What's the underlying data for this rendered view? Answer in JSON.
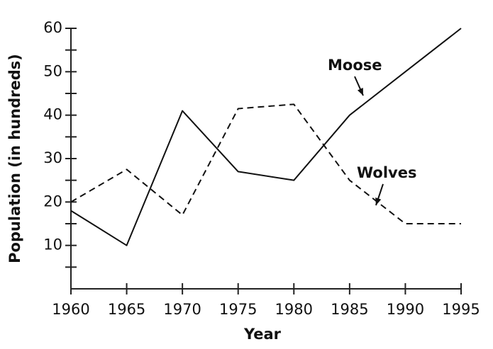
{
  "chart_data": {
    "type": "line",
    "x_label": "Year",
    "y_label": "Population (in hundreds)",
    "x": [
      1960,
      1965,
      1970,
      1975,
      1980,
      1985,
      1990,
      1995
    ],
    "xlim": [
      1960,
      1995
    ],
    "xticks": [
      1960,
      1965,
      1970,
      1975,
      1980,
      1985,
      1990,
      1995
    ],
    "ylim": [
      0,
      60
    ],
    "yticks": [
      10,
      20,
      30,
      40,
      50,
      60
    ],
    "series": [
      {
        "name": "Moose",
        "color": "#111111",
        "dashed": false,
        "values": [
          18,
          10,
          41,
          27,
          25,
          40,
          50,
          60
        ]
      },
      {
        "name": "Wolves",
        "color": "#111111",
        "dashed": true,
        "values": [
          20,
          27.5,
          17,
          41.5,
          42.5,
          25,
          15,
          15
        ]
      }
    ]
  }
}
